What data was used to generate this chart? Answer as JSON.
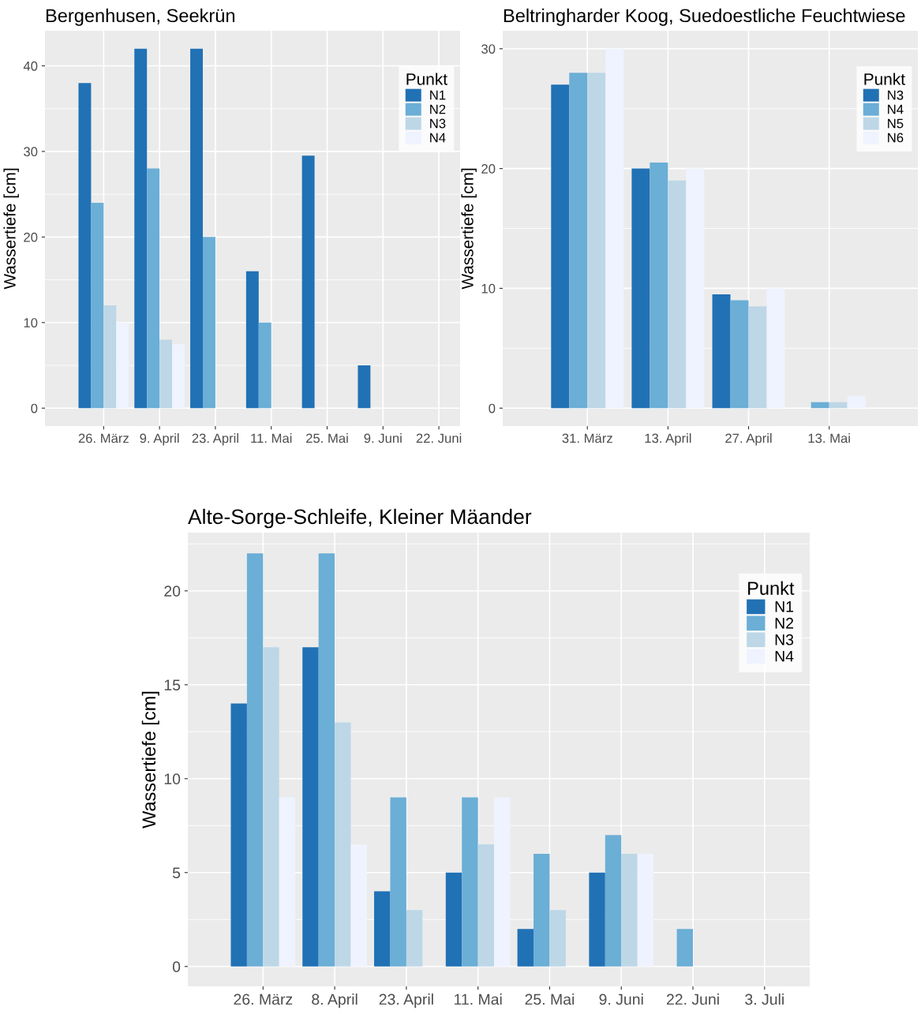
{
  "chart_data": [
    {
      "type": "bar",
      "title": "Bergenhusen, Seekrün",
      "ylabel": "Wassertiefe [cm]",
      "legend_title": "Punkt",
      "legend": "top right",
      "grid": true,
      "categories": [
        "26. März",
        "9. April",
        "23. April",
        "11. Mai",
        "25. Mai",
        "9. Juni",
        "22. Juni"
      ],
      "ylim": [
        -2.1,
        44.1
      ],
      "yticks": [
        0,
        10,
        20,
        30,
        40
      ],
      "series": [
        {
          "name": "N1",
          "color": "#2171b5",
          "values": [
            38,
            42,
            42,
            16,
            29.5,
            5,
            null
          ]
        },
        {
          "name": "N2",
          "color": "#6baed6",
          "values": [
            24,
            28,
            20,
            10,
            null,
            null,
            null
          ]
        },
        {
          "name": "N3",
          "color": "#bdd7e7",
          "values": [
            12,
            8,
            null,
            null,
            null,
            null,
            null
          ]
        },
        {
          "name": "N4",
          "color": "#eff3ff",
          "values": [
            10,
            7.5,
            null,
            null,
            null,
            null,
            null
          ]
        }
      ]
    },
    {
      "type": "bar",
      "title": "Beltringharder Koog, Suedoestliche Feuchtwiese",
      "ylabel": "Wassertiefe [cm]",
      "legend_title": "Punkt",
      "legend": "top right",
      "grid": true,
      "categories": [
        "31. März",
        "13. April",
        "27. April",
        "13. Mai"
      ],
      "ylim": [
        -1.5,
        31.5
      ],
      "yticks": [
        0,
        10,
        20,
        30
      ],
      "series": [
        {
          "name": "N3",
          "color": "#2171b5",
          "values": [
            27,
            20,
            9.5,
            null
          ]
        },
        {
          "name": "N4",
          "color": "#6baed6",
          "values": [
            28,
            20.5,
            9,
            0.5
          ]
        },
        {
          "name": "N5",
          "color": "#bdd7e7",
          "values": [
            28,
            19,
            8.5,
            0.5
          ]
        },
        {
          "name": "N6",
          "color": "#eff3ff",
          "values": [
            30,
            20,
            10,
            1
          ]
        }
      ]
    },
    {
      "type": "bar",
      "title": "Alte-Sorge-Schleife, Kleiner Mäander",
      "ylabel": "Wassertiefe [cm]",
      "legend_title": "Punkt",
      "legend": "top right",
      "grid": true,
      "categories": [
        "26. März",
        "8. April",
        "23. April",
        "11. Mai",
        "25. Mai",
        "9. Juni",
        "22. Juni",
        "3. Juli"
      ],
      "ylim": [
        -1.06,
        23.1
      ],
      "yticks": [
        0,
        5,
        10,
        15,
        20
      ],
      "series": [
        {
          "name": "N1",
          "color": "#2171b5",
          "values": [
            14,
            17,
            4,
            5,
            2,
            5,
            null,
            null
          ]
        },
        {
          "name": "N2",
          "color": "#6baed6",
          "values": [
            22,
            22,
            9,
            9,
            6,
            7,
            2,
            null
          ]
        },
        {
          "name": "N3",
          "color": "#bdd7e7",
          "values": [
            17,
            13,
            3,
            6.5,
            3,
            6,
            null,
            null
          ]
        },
        {
          "name": "N4",
          "color": "#eff3ff",
          "values": [
            9,
            6.5,
            null,
            9,
            null,
            6,
            null,
            null
          ]
        }
      ]
    }
  ]
}
